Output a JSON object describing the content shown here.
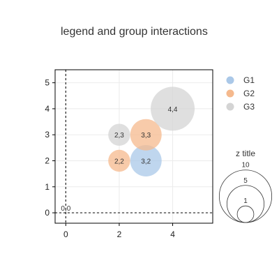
{
  "chart_data": {
    "type": "scatter",
    "title": "legend and group interactions",
    "xlabel": "",
    "ylabel": "",
    "xlim": [
      -0.4,
      5.5
    ],
    "ylim": [
      -0.4,
      5.5
    ],
    "x_ticks": [
      0,
      2,
      4
    ],
    "y_ticks": [
      0,
      1,
      2,
      3,
      4,
      5
    ],
    "grid": true,
    "reference_lines": {
      "x": 0,
      "y": 0,
      "style": "dashed"
    },
    "legend_position": "right",
    "series": [
      {
        "name": "G1",
        "color": "#aac8e8",
        "points": [
          {
            "x": 3,
            "y": 2,
            "z": 10,
            "label": "3,2"
          }
        ]
      },
      {
        "name": "G2",
        "color": "#f5b98d",
        "points": [
          {
            "x": 2,
            "y": 2,
            "z": 7,
            "label": "2,2"
          },
          {
            "x": 3,
            "y": 3,
            "z": 10,
            "label": "3,3"
          }
        ]
      },
      {
        "name": "G3",
        "color": "#d4d4d4",
        "points": [
          {
            "x": 2,
            "y": 3,
            "z": 7,
            "label": "2,3"
          },
          {
            "x": 4,
            "y": 4,
            "z": 14,
            "label": "4,4"
          },
          {
            "x": 0,
            "y": 0,
            "z": 0,
            "label": "0,0"
          }
        ]
      }
    ],
    "size_legend": {
      "title": "z title",
      "values": [
        10,
        5,
        1
      ]
    }
  }
}
